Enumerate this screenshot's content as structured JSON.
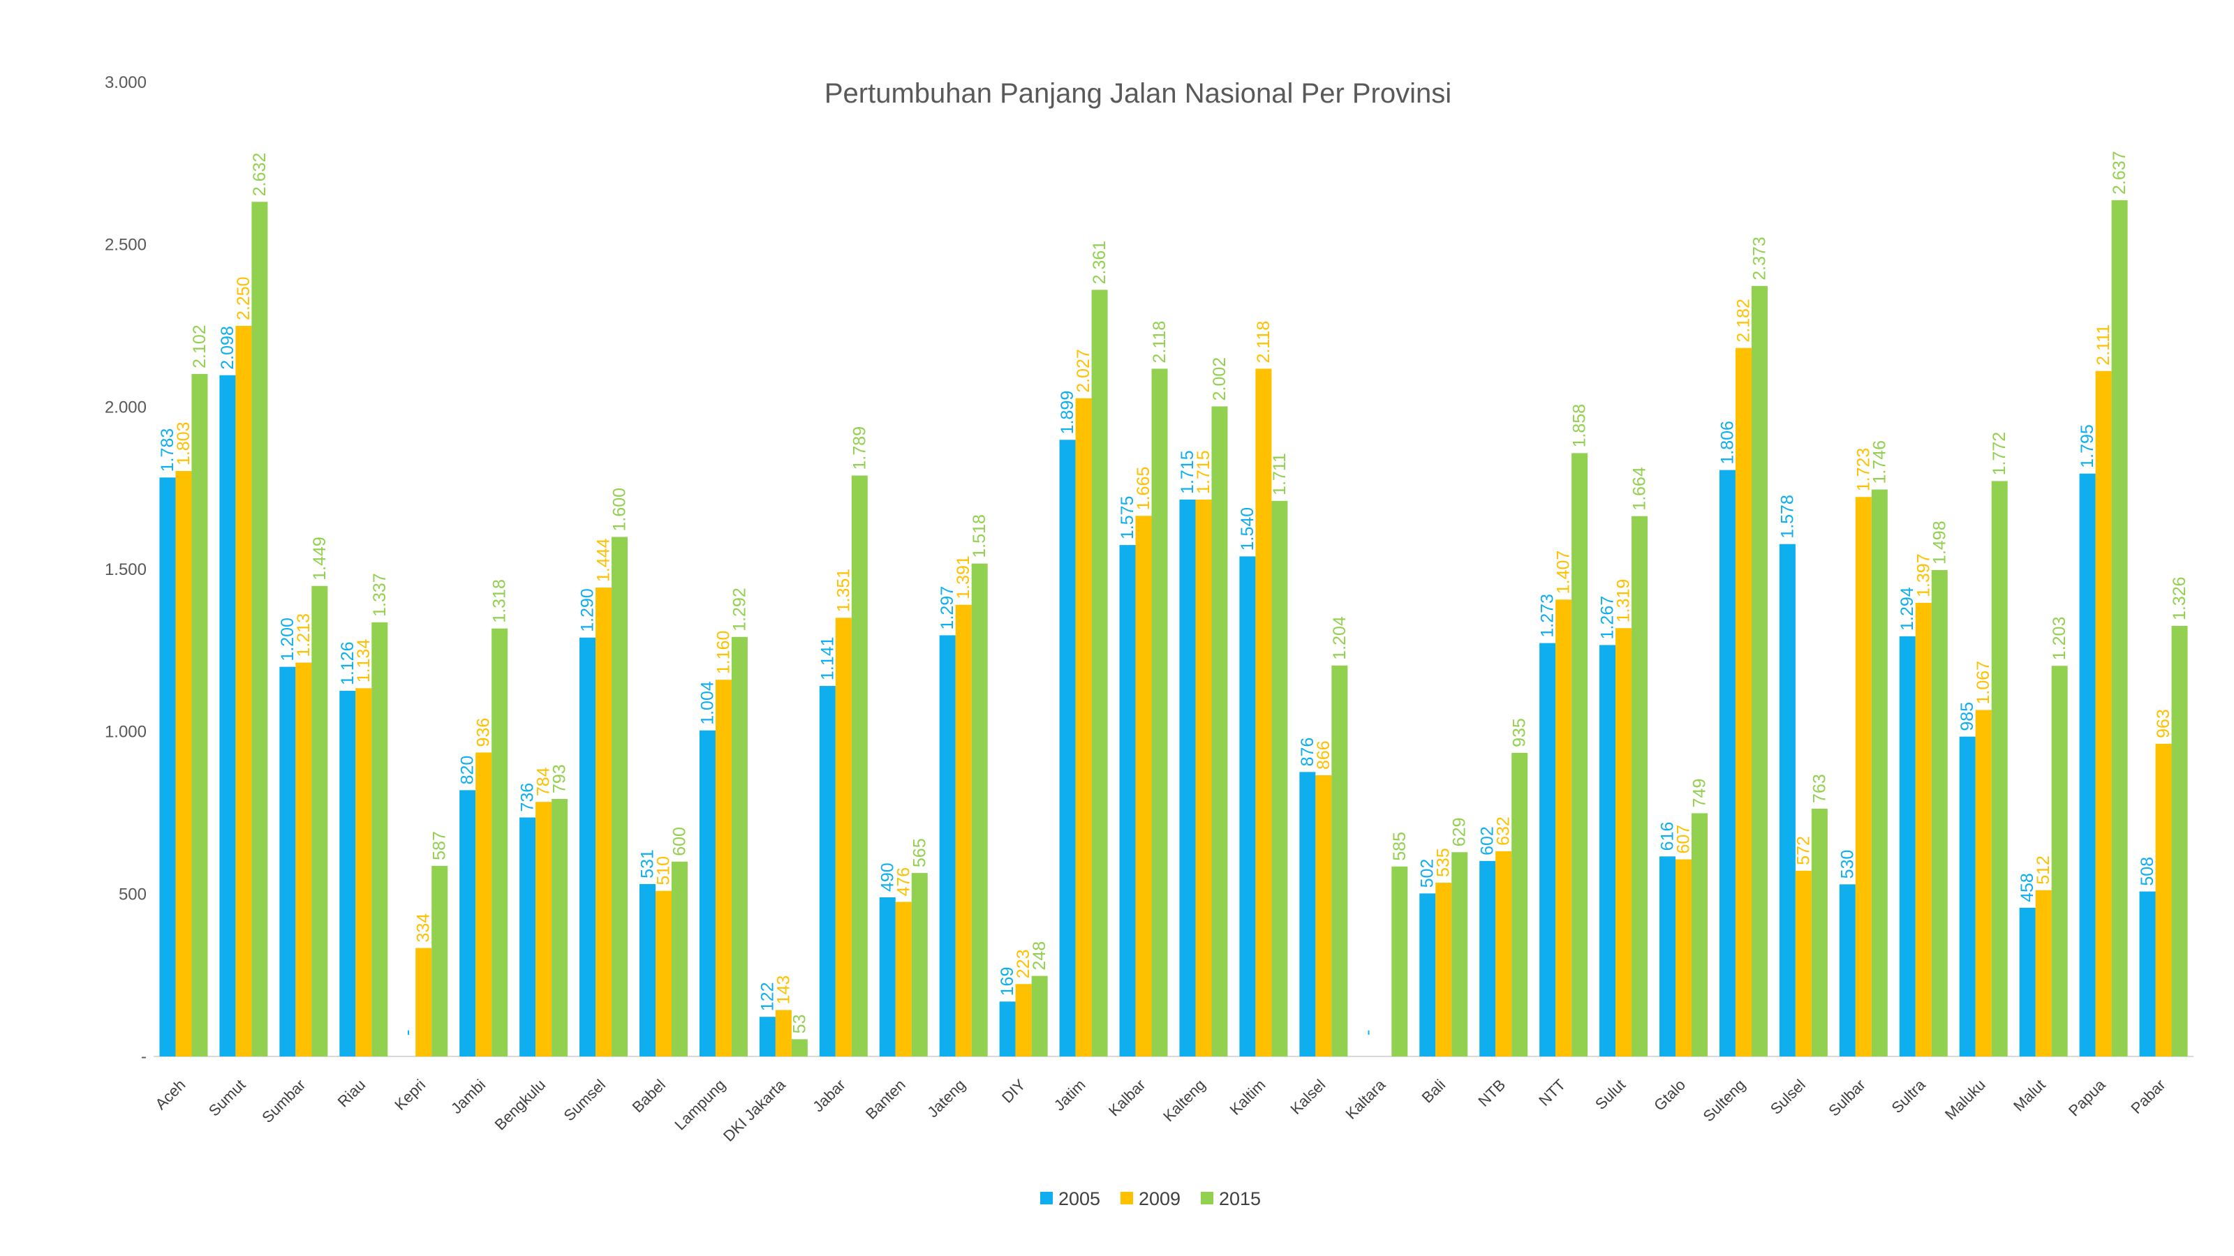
{
  "chart_data": {
    "type": "bar",
    "title": "Pertumbuhan Panjang Jalan Nasional Per Provinsi",
    "xlabel": "",
    "ylabel": "",
    "ylim": [
      0,
      3000
    ],
    "yticks": [
      0,
      500,
      1000,
      1500,
      2000,
      2500,
      3000
    ],
    "ytick_labels": [
      "-",
      "500",
      "1.000",
      "1.500",
      "2.000",
      "2.500",
      "3.000"
    ],
    "legend_position": "bottom",
    "categories": [
      "Aceh",
      "Sumut",
      "Sumbar",
      "Riau",
      "Kepri",
      "Jambi",
      "Bengkulu",
      "Sumsel",
      "Babel",
      "Lampung",
      "DKI Jakarta",
      "Jabar",
      "Banten",
      "Jateng",
      "DIY",
      "Jatim",
      "Kalbar",
      "Kalteng",
      "Kaltim",
      "Kalsel",
      "Kaltara",
      "Bali",
      "NTB",
      "NTT",
      "Sulut",
      "Gtalo",
      "Sulteng",
      "Sulsel",
      "Sulbar",
      "Sultra",
      "Maluku",
      "Malut",
      "Papua",
      "Pabar"
    ],
    "series": [
      {
        "name": "2005",
        "color": "#0FAEEF",
        "values": [
          1783,
          2098,
          1200,
          1126,
          0,
          820,
          736,
          1290,
          531,
          1004,
          122,
          1141,
          490,
          1297,
          169,
          1899,
          1575,
          1715,
          1540,
          876,
          0,
          502,
          602,
          1273,
          1267,
          616,
          1806,
          1578,
          530,
          1294,
          985,
          458,
          1795,
          508
        ],
        "labels": [
          "1.783",
          "2.098",
          "1.200",
          "1.126",
          "-",
          "820",
          "736",
          "1.290",
          "531",
          "1.004",
          "122",
          "1.141",
          "490",
          "1.297",
          "169",
          "1.899",
          "1.575",
          "1.715",
          "1.540",
          "876",
          "-",
          "502",
          "602",
          "1.273",
          "1.267",
          "616",
          "1.806",
          "1.578",
          "530",
          "1.294",
          "985",
          "458",
          "1.795",
          "508"
        ]
      },
      {
        "name": "2009",
        "color": "#FFC000",
        "values": [
          1803,
          2250,
          1213,
          1134,
          334,
          936,
          784,
          1444,
          510,
          1160,
          143,
          1351,
          476,
          1391,
          223,
          2027,
          1665,
          1715,
          2118,
          866,
          null,
          535,
          632,
          1407,
          1319,
          607,
          2182,
          572,
          1723,
          1397,
          1067,
          512,
          2111,
          963
        ],
        "labels": [
          "1.803",
          "2.250",
          "1.213",
          "1.134",
          "334",
          "936",
          "784",
          "1.444",
          "510",
          "1.160",
          "143",
          "1.351",
          "476",
          "1.391",
          "223",
          "2.027",
          "1.665",
          "1.715",
          "2.118",
          "866",
          "",
          "535",
          "632",
          "1.407",
          "1.319",
          "607",
          "2.182",
          "572",
          "1.723",
          "1.397",
          "1.067",
          "512",
          "2.111",
          "963"
        ]
      },
      {
        "name": "2015",
        "color": "#92D050",
        "values": [
          2102,
          2632,
          1449,
          1337,
          587,
          1318,
          793,
          1600,
          600,
          1292,
          53,
          1789,
          565,
          1518,
          248,
          2361,
          2118,
          2002,
          1711,
          1204,
          585,
          629,
          935,
          1858,
          1664,
          749,
          2373,
          763,
          1746,
          1498,
          1772,
          1203,
          2637,
          1326
        ],
        "labels": [
          "2.102",
          "2.632",
          "1.449",
          "1.337",
          "587",
          "1.318",
          "793",
          "1.600",
          "600",
          "1.292",
          "53",
          "1.789",
          "565",
          "1.518",
          "248",
          "2.361",
          "2.118",
          "2.002",
          "1.711",
          "1.204",
          "585",
          "629",
          "935",
          "1.858",
          "1.664",
          "749",
          "2.373",
          "763",
          "1.746",
          "1.498",
          "1.772",
          "1.203",
          "2.637",
          "1.326"
        ]
      }
    ]
  }
}
